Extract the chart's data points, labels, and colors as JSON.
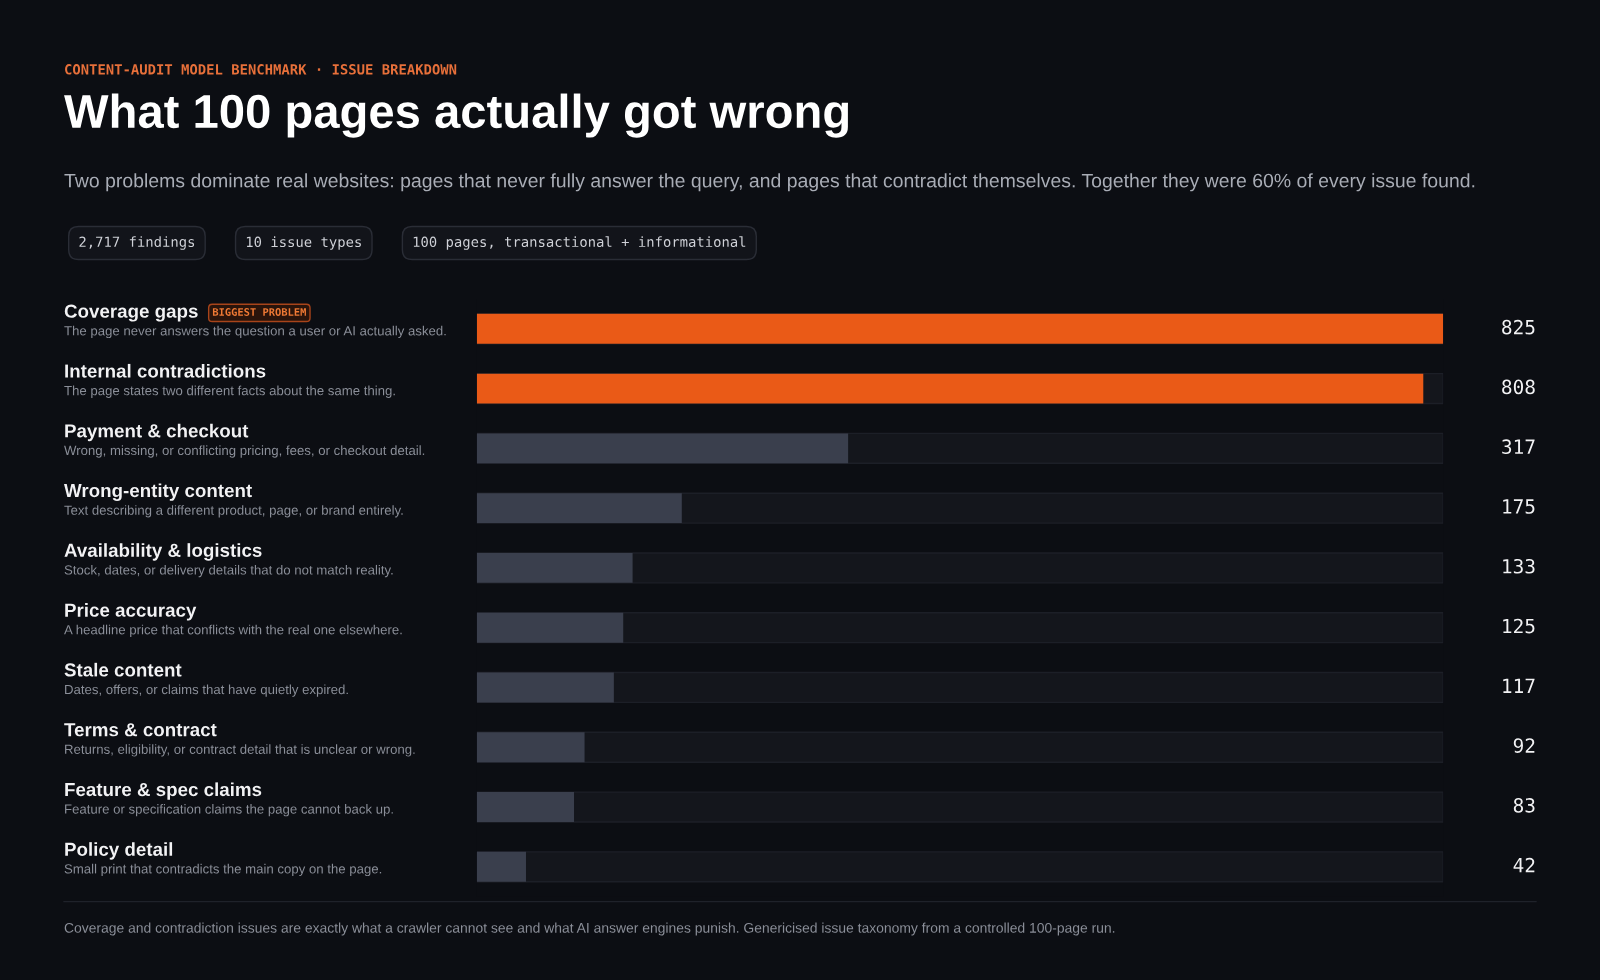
{
  "chart_data": {
    "type": "bar",
    "orientation": "horizontal",
    "title": "What 100 pages actually got wrong",
    "subtitle": "Two problems dominate real websites: pages that never fully answer the query, and pages that contradict themselves. Together they were 60% of every issue found.",
    "categories": [
      "Coverage gaps",
      "Internal contradictions",
      "Payment & checkout",
      "Wrong-entity content",
      "Availability & logistics",
      "Price accuracy",
      "Stale content",
      "Terms & contract",
      "Feature & spec claims",
      "Policy detail"
    ],
    "values": [
      825,
      808,
      317,
      175,
      133,
      125,
      117,
      92,
      83,
      42
    ],
    "colors": [
      "#ea5a17",
      "#ea5a17",
      "#3a3f4d",
      "#3a3f4d",
      "#3a3f4d",
      "#3a3f4d",
      "#3a3f4d",
      "#3a3f4d",
      "#3a3f4d",
      "#3a3f4d"
    ],
    "data_labels": true,
    "annotations": [
      "CONTENT-AUDIT MODEL BENCHMARK · ISSUE BREAKDOWN",
      "2,717 findings",
      "10 issue types",
      "100 pages, transactional + informational",
      "BIGGEST PROBLEM",
      "The page never answers the question a user or AI actually asked.",
      "The page states two different facts about the same thing.",
      "Wrong, missing, or conflicting pricing, fees, or checkout detail.",
      "Text describing a different product, page, or brand entirely.",
      "Stock, dates, or delivery details that do not match reality.",
      "A headline price that conflicts with the real one elsewhere.",
      "Dates, offers, or claims that have quietly expired.",
      "Returns, eligibility, or contract detail that is unclear or wrong.",
      "Feature or specification claims the page cannot back up.",
      "Small print that contradicts the main copy on the page.",
      "Coverage and contradiction issues are exactly what a crawler cannot see and what AI answer engines punish. Genericised issue taxonomy from a controlled 100-page run."
    ]
  }
}
